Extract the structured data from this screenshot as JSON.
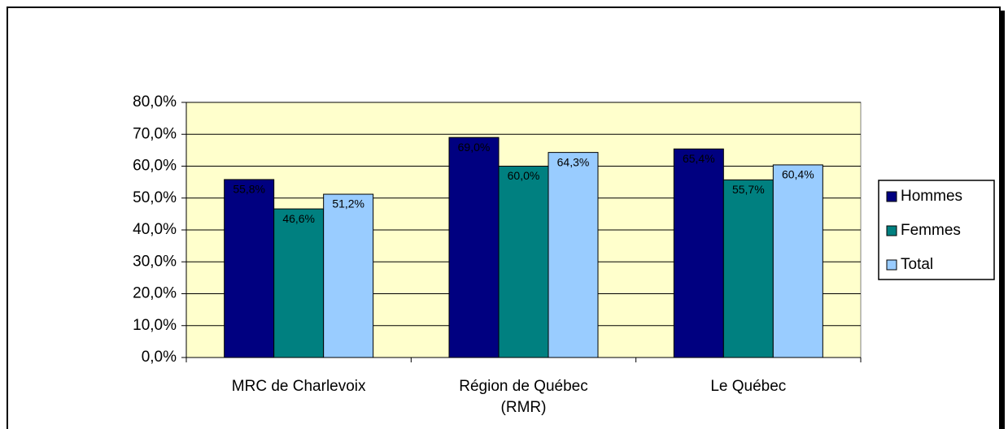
{
  "chart_data": {
    "type": "bar",
    "categories": [
      "MRC de Charlevoix",
      "Région de Québec (RMR)",
      "Le Québec"
    ],
    "series": [
      {
        "name": "Hommes",
        "color": "#000080",
        "values": [
          55.8,
          69.0,
          65.4
        ],
        "value_labels": [
          "55,8%",
          "69,0%",
          "65,4%"
        ]
      },
      {
        "name": "Femmes",
        "color": "#008080",
        "values": [
          46.6,
          60.0,
          55.7
        ],
        "value_labels": [
          "46,6%",
          "60,0%",
          "55,7%"
        ]
      },
      {
        "name": "Total",
        "color": "#99ccff",
        "values": [
          51.2,
          64.3,
          60.4
        ],
        "value_labels": [
          "51,2%",
          "64,3%",
          "60,4%"
        ]
      }
    ],
    "ylim": [
      0,
      80
    ],
    "yticks": [
      {
        "value": 0,
        "label": "0,0%"
      },
      {
        "value": 10,
        "label": "10,0%"
      },
      {
        "value": 20,
        "label": "20,0%"
      },
      {
        "value": 30,
        "label": "30,0%"
      },
      {
        "value": 40,
        "label": "40,0%"
      },
      {
        "value": 50,
        "label": "50,0%"
      },
      {
        "value": 60,
        "label": "60,0%"
      },
      {
        "value": 70,
        "label": "70,0%"
      },
      {
        "value": 80,
        "label": "80,0%"
      }
    ],
    "grid": true,
    "legend": "right"
  }
}
